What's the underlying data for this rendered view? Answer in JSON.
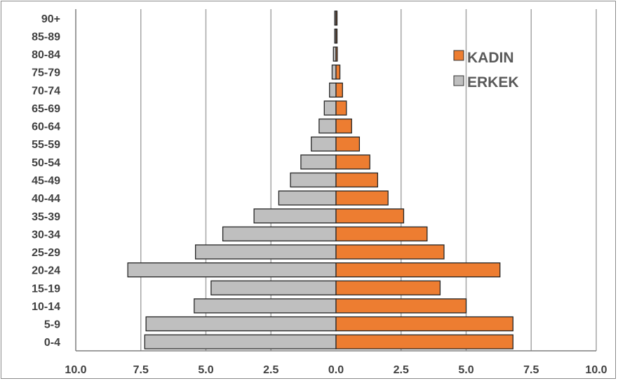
{
  "chart_data": {
    "type": "bar",
    "orientation": "horizontal",
    "layout": "population-pyramid",
    "categories": [
      "0-4",
      "5-9",
      "10-14",
      "15-19",
      "20-24",
      "25-29",
      "30-34",
      "35-39",
      "40-44",
      "45-49",
      "50-54",
      "55-59",
      "60-64",
      "65-69",
      "70-74",
      "75-79",
      "80-84",
      "85-89",
      "90+"
    ],
    "series": [
      {
        "name": "KADIN",
        "side": "right",
        "color": "#ED7D31",
        "values": [
          6.8,
          6.8,
          5.0,
          4.0,
          6.3,
          4.15,
          3.5,
          2.6,
          2.0,
          1.6,
          1.3,
          0.9,
          0.6,
          0.4,
          0.25,
          0.15,
          0.05,
          0.03,
          0.03
        ]
      },
      {
        "name": "ERKEK",
        "side": "left",
        "color": "#BFBFBF",
        "values": [
          7.35,
          7.3,
          5.45,
          4.8,
          8.0,
          5.4,
          4.35,
          3.15,
          2.2,
          1.75,
          1.35,
          0.95,
          0.65,
          0.45,
          0.25,
          0.15,
          0.1,
          0.05,
          0.05
        ]
      }
    ],
    "x_ticks": [
      "10.0",
      "7.5",
      "5.0",
      "2.5",
      "0.0",
      "2.5",
      "5.0",
      "7.5",
      "10.0"
    ],
    "xlim": [
      -10,
      10
    ],
    "grid": "vertical",
    "legend": "upper-right"
  }
}
